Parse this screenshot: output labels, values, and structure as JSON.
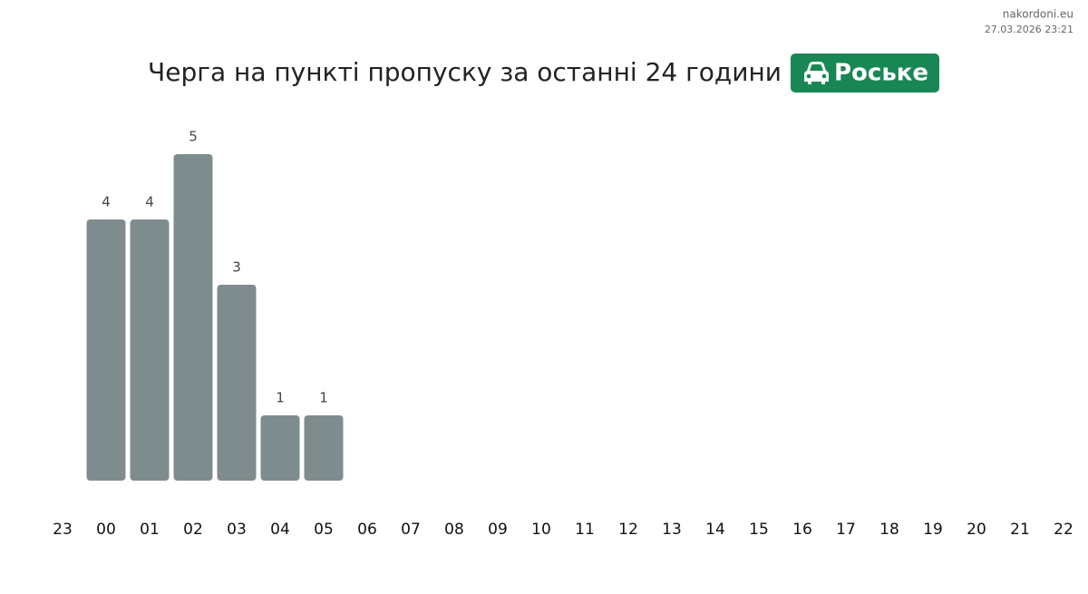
{
  "chart_data": {
    "type": "bar",
    "title": "Черга на пункті пропуску за останні 24 години",
    "badge": "Роське",
    "site": "nakordoni.eu",
    "timestamp": "27.03.2026 23:21",
    "color": "#7f8c8d",
    "badge_color": "#198754",
    "categories": [
      "23",
      "00",
      "01",
      "02",
      "03",
      "04",
      "05",
      "06",
      "07",
      "08",
      "09",
      "10",
      "11",
      "12",
      "13",
      "14",
      "15",
      "16",
      "17",
      "18",
      "19",
      "20",
      "21",
      "22"
    ],
    "values": [
      null,
      4,
      4,
      5,
      3,
      1,
      1,
      null,
      null,
      null,
      null,
      null,
      null,
      null,
      null,
      null,
      null,
      null,
      null,
      null,
      null,
      null,
      null,
      null
    ]
  }
}
